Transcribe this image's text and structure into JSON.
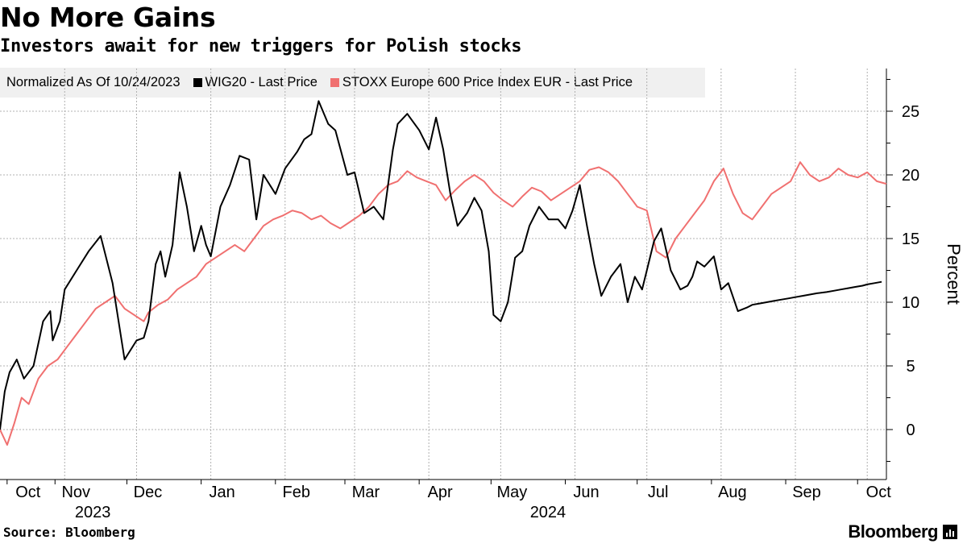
{
  "title": "No More Gains",
  "subtitle": "Investors await for new triggers for Polish stocks",
  "legend": {
    "normalized": "Normalized As Of 10/24/2023",
    "series1": "WIG20 - Last Price",
    "series2": "STOXX Europe 600 Price Index EUR - Last Price"
  },
  "colors": {
    "wig20": "#000000",
    "stoxx": "#f07070",
    "grid": "#b0b0b0",
    "legend_bg": "#f0f0f0"
  },
  "source": "Source: Bloomberg",
  "brand": "Bloomberg",
  "brand_icon": "bloomberg-terminal-icon",
  "chart_data": {
    "type": "line",
    "ylabel": "Percent",
    "ylim": [
      -4,
      28
    ],
    "yticks": [
      0,
      5,
      10,
      15,
      20,
      25
    ],
    "grid": true,
    "x_unit": "days since 2023-10-24",
    "x_range": [
      0,
      370
    ],
    "months": [
      {
        "label": "Oct",
        "day": 7
      },
      {
        "label": "Nov",
        "day": 27
      },
      {
        "label": "Dec",
        "day": 57
      },
      {
        "label": "Jan",
        "day": 88
      },
      {
        "label": "Feb",
        "day": 119
      },
      {
        "label": "Mar",
        "day": 148
      },
      {
        "label": "Apr",
        "day": 179
      },
      {
        "label": "May",
        "day": 209
      },
      {
        "label": "Jun",
        "day": 240
      },
      {
        "label": "Jul",
        "day": 270
      },
      {
        "label": "Aug",
        "day": 301
      },
      {
        "label": "Sep",
        "day": 332
      },
      {
        "label": "Oct",
        "day": 362
      }
    ],
    "years": [
      {
        "label": "2023",
        "day": 34
      },
      {
        "label": "2024",
        "day": 224
      }
    ],
    "series": [
      {
        "name": "WIG20 - Last Price",
        "x": [
          0,
          2,
          4,
          7,
          10,
          14,
          18,
          21,
          22,
          25,
          27,
          32,
          37,
          42,
          47,
          52,
          57,
          60,
          62,
          65,
          67,
          69,
          72,
          75,
          78,
          81,
          84,
          86,
          88,
          92,
          96,
          100,
          104,
          107,
          110,
          115,
          119,
          124,
          127,
          130,
          133,
          137,
          140,
          145,
          148,
          152,
          156,
          160,
          164,
          166,
          170,
          175,
          179,
          182,
          185,
          188,
          191,
          195,
          198,
          201,
          204,
          206,
          209,
          212,
          215,
          218,
          221,
          225,
          229,
          233,
          236,
          239,
          242,
          245,
          248,
          251,
          255,
          259,
          262,
          265,
          268,
          270,
          273,
          276,
          280,
          284,
          287,
          289,
          291,
          294,
          298,
          301,
          304,
          308,
          312,
          314,
          317,
          320,
          323,
          326,
          329,
          332,
          335,
          338,
          341,
          345,
          348,
          351,
          354,
          357,
          360,
          362,
          365,
          368
        ],
        "y": [
          0,
          3,
          4.5,
          5.5,
          4,
          5,
          8.5,
          9.3,
          7,
          8.5,
          11,
          12.5,
          14,
          15.2,
          11.5,
          5.5,
          7,
          7.2,
          8.5,
          13,
          14,
          12,
          14.5,
          20.2,
          17.5,
          14,
          16,
          14.5,
          13.6,
          17.5,
          19.2,
          21.5,
          21.2,
          16.5,
          20,
          18.5,
          20.5,
          21.8,
          22.8,
          23.2,
          25.8,
          24,
          23.5,
          20,
          20.2,
          17,
          17.5,
          16.5,
          22,
          24,
          24.8,
          23.5,
          22,
          24.5,
          22,
          18.5,
          16,
          17,
          18.2,
          17.2,
          14,
          9,
          8.5,
          10,
          13.5,
          14,
          16,
          17.5,
          16.5,
          16.5,
          15.8,
          17.2,
          19.2,
          16,
          13,
          10.5,
          12,
          13,
          10,
          12,
          11,
          12.5,
          14.8,
          15.8,
          12.5,
          11,
          11.3,
          12,
          13.2,
          12.8,
          13.6,
          11,
          11.5,
          9.3,
          9.6,
          9.8,
          9.9,
          10.0,
          10.1,
          10.2,
          10.3,
          10.4,
          10.5,
          10.6,
          10.7,
          10.8,
          10.9,
          11.0,
          11.1,
          11.2,
          11.3,
          11.4,
          11.5,
          11.6
        ]
      },
      {
        "name": "STOXX Europe 600 Price Index EUR - Last Price",
        "x": [
          0,
          3,
          6,
          9,
          12,
          16,
          20,
          24,
          28,
          32,
          36,
          40,
          44,
          48,
          52,
          56,
          60,
          62,
          66,
          70,
          74,
          78,
          82,
          86,
          90,
          94,
          98,
          102,
          106,
          110,
          114,
          118,
          122,
          126,
          130,
          134,
          138,
          142,
          146,
          150,
          154,
          158,
          162,
          166,
          170,
          174,
          178,
          182,
          186,
          190,
          194,
          198,
          202,
          206,
          210,
          214,
          218,
          222,
          226,
          230,
          234,
          238,
          242,
          246,
          250,
          254,
          258,
          262,
          266,
          270,
          274,
          278,
          282,
          286,
          290,
          294,
          298,
          302,
          306,
          310,
          314,
          318,
          322,
          326,
          330,
          334,
          338,
          342,
          346,
          350,
          354,
          358,
          362,
          366,
          370
        ],
        "y": [
          0,
          -1.2,
          0.5,
          2.5,
          2,
          4,
          5,
          5.5,
          6.5,
          7.5,
          8.5,
          9.5,
          10,
          10.5,
          9.5,
          9,
          8.5,
          9.2,
          9.8,
          10.2,
          11,
          11.5,
          12,
          13,
          13.5,
          14,
          14.5,
          14,
          15,
          16,
          16.5,
          16.8,
          17.2,
          17,
          16.5,
          16.8,
          16.2,
          15.8,
          16.3,
          16.8,
          17.5,
          18.5,
          19.2,
          19.5,
          20.3,
          19.8,
          19.5,
          19.2,
          18,
          18.8,
          19.5,
          20,
          19.5,
          18.6,
          18,
          17.5,
          18.3,
          19,
          18.7,
          18,
          18.5,
          19,
          19.5,
          20.4,
          20.6,
          20.2,
          19.5,
          18.5,
          17.5,
          17.2,
          14,
          13.5,
          15,
          16,
          17,
          18,
          19.5,
          20.5,
          18.5,
          17,
          16.5,
          17.5,
          18.5,
          19,
          19.5,
          21,
          20,
          19.5,
          19.8,
          20.5,
          20,
          19.8,
          20.2,
          19.5,
          19.3
        ]
      }
    ]
  }
}
